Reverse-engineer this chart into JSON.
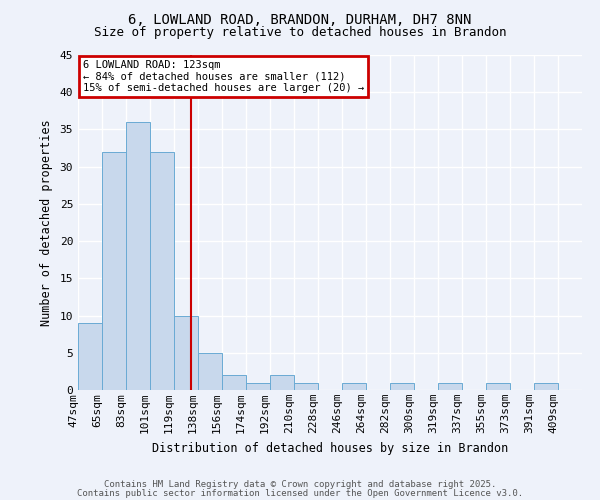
{
  "title1": "6, LOWLAND ROAD, BRANDON, DURHAM, DH7 8NN",
  "title2": "Size of property relative to detached houses in Brandon",
  "xlabel": "Distribution of detached houses by size in Brandon",
  "ylabel": "Number of detached properties",
  "categories": [
    "47sqm",
    "65sqm",
    "83sqm",
    "101sqm",
    "119sqm",
    "138sqm",
    "156sqm",
    "174sqm",
    "192sqm",
    "210sqm",
    "228sqm",
    "246sqm",
    "264sqm",
    "282sqm",
    "300sqm",
    "319sqm",
    "337sqm",
    "355sqm",
    "373sqm",
    "391sqm",
    "409sqm"
  ],
  "values": [
    9,
    32,
    36,
    32,
    10,
    5,
    2,
    1,
    2,
    1,
    0,
    1,
    0,
    1,
    0,
    1,
    0,
    1,
    0,
    1,
    0
  ],
  "bar_color": "#c8d8ec",
  "bar_edge_color": "#6aaad4",
  "ylim": [
    0,
    45
  ],
  "yticks": [
    0,
    5,
    10,
    15,
    20,
    25,
    30,
    35,
    40,
    45
  ],
  "red_line_x": 4.72,
  "annotation_text": "6 LOWLAND ROAD: 123sqm\n← 84% of detached houses are smaller (112)\n15% of semi-detached houses are larger (20) →",
  "annotation_box_color": "#cc0000",
  "footer1": "Contains HM Land Registry data © Crown copyright and database right 2025.",
  "footer2": "Contains public sector information licensed under the Open Government Licence v3.0.",
  "background_color": "#eef2fa",
  "grid_color": "#ffffff",
  "title1_fontsize": 10,
  "title2_fontsize": 9,
  "annot_fontsize": 7.5,
  "axis_label_fontsize": 8.5,
  "tick_fontsize": 8,
  "footer_fontsize": 6.5
}
